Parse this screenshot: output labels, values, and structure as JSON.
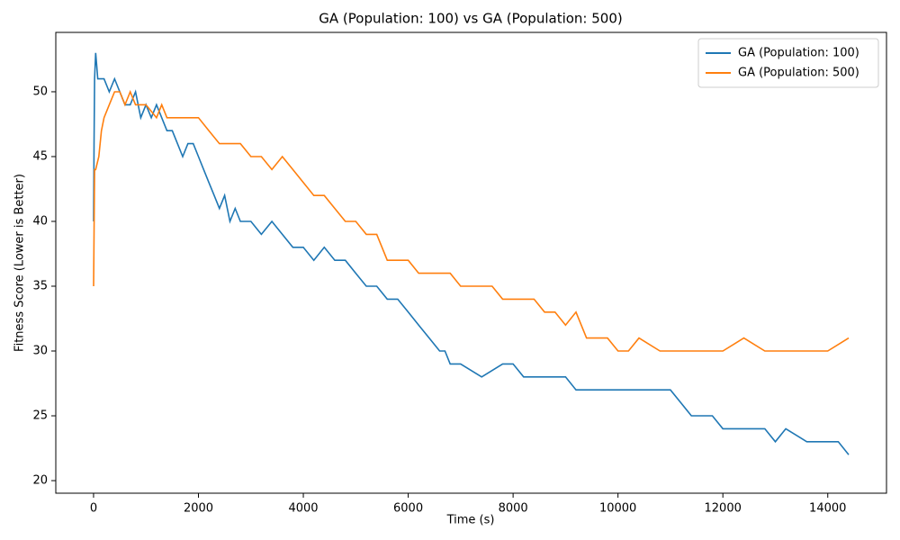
{
  "chart_data": {
    "type": "line",
    "title": "GA (Population: 100) vs GA (Population: 500)",
    "x_label": "Time (s)",
    "y_label": "Fitness Score (Lower is Better)",
    "xlim": [
      -720,
      15120
    ],
    "xticks": [
      0,
      2000,
      4000,
      6000,
      8000,
      10000,
      12000,
      14000
    ],
    "ylim": [
      19.03,
      54.58
    ],
    "yticks": [
      20,
      25,
      30,
      35,
      40,
      45,
      50
    ],
    "legend": "upper right",
    "series": [
      {
        "name": "GA (Population: 100)",
        "color": "#1f77b4",
        "x": [
          0,
          10,
          20,
          40,
          60,
          80,
          100,
          150,
          200,
          300,
          400,
          500,
          600,
          700,
          800,
          900,
          1000,
          1100,
          1200,
          1300,
          1400,
          1500,
          1600,
          1700,
          1800,
          1900,
          2000,
          2100,
          2200,
          2300,
          2400,
          2500,
          2600,
          2700,
          2800,
          3000,
          3200,
          3400,
          3600,
          3800,
          4000,
          4200,
          4400,
          4600,
          4800,
          5000,
          5200,
          5400,
          5600,
          5800,
          6000,
          6200,
          6400,
          6600,
          6700,
          6800,
          7000,
          7400,
          7800,
          8000,
          8200,
          8600,
          9000,
          9200,
          9600,
          10000,
          10400,
          10800,
          11000,
          11200,
          11400,
          11800,
          12000,
          12400,
          12800,
          13000,
          13200,
          13600,
          14000,
          14200,
          14400
        ],
        "values": [
          40,
          46,
          51,
          53,
          52,
          51,
          51,
          51,
          51,
          50,
          51,
          50,
          49,
          49,
          50,
          48,
          49,
          48,
          49,
          48,
          47,
          47,
          46,
          45,
          46,
          46,
          45,
          44,
          43,
          42,
          41,
          42,
          40,
          41,
          40,
          40,
          39,
          40,
          39,
          38,
          38,
          37,
          38,
          37,
          37,
          36,
          35,
          35,
          34,
          34,
          33,
          32,
          31,
          30,
          30,
          29,
          29,
          28,
          29,
          29,
          28,
          28,
          28,
          27,
          27,
          27,
          27,
          27,
          27,
          26,
          25,
          25,
          24,
          24,
          24,
          23,
          24,
          23,
          23,
          23,
          22
        ]
      },
      {
        "name": "GA (Population: 500)",
        "color": "#ff7f0e",
        "x": [
          0,
          20,
          40,
          100,
          150,
          200,
          300,
          400,
          500,
          600,
          700,
          800,
          1000,
          1200,
          1300,
          1400,
          1600,
          1800,
          2000,
          2200,
          2400,
          2600,
          2800,
          3000,
          3200,
          3400,
          3600,
          3800,
          4000,
          4200,
          4400,
          4600,
          4800,
          5000,
          5200,
          5400,
          5600,
          5800,
          6000,
          6200,
          6400,
          6600,
          6800,
          7000,
          7200,
          7400,
          7600,
          7800,
          8000,
          8200,
          8400,
          8600,
          8800,
          9000,
          9200,
          9400,
          9600,
          9800,
          10000,
          10200,
          10400,
          10800,
          11000,
          11400,
          11800,
          12000,
          12400,
          12800,
          13000,
          13400,
          13800,
          14000,
          14400
        ],
        "values": [
          35,
          44,
          44,
          45,
          47,
          48,
          49,
          50,
          50,
          49,
          50,
          49,
          49,
          48,
          49,
          48,
          48,
          48,
          48,
          47,
          46,
          46,
          46,
          45,
          45,
          44,
          45,
          44,
          43,
          42,
          42,
          41,
          40,
          40,
          39,
          39,
          37,
          37,
          37,
          36,
          36,
          36,
          36,
          35,
          35,
          35,
          35,
          34,
          34,
          34,
          34,
          33,
          33,
          32,
          33,
          31,
          31,
          31,
          30,
          30,
          31,
          30,
          30,
          30,
          30,
          30,
          31,
          30,
          30,
          30,
          30,
          30,
          31
        ]
      }
    ]
  }
}
